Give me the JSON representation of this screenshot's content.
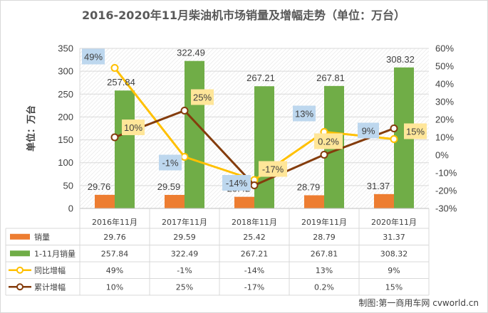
{
  "title": "2016-2020年11月柴油机市场销量及增幅走势（单位：万台）",
  "watermark": "制图:第一商用车网 cvworld.cn",
  "chart_data": {
    "type": "bar",
    "title": "2016-2020年11月柴油机市场销量及增幅走势（单位：万台）",
    "ylabel": "单位：万台",
    "categories": [
      "2016年11月",
      "2017年11月",
      "2018年11月",
      "2019年11月",
      "2020年11月"
    ],
    "ylim": [
      0,
      350
    ],
    "y_ticks": [
      "0",
      "50",
      "100",
      "150",
      "200",
      "250",
      "300",
      "350"
    ],
    "y2lim": [
      -30,
      60
    ],
    "y2_ticks": [
      "-30%",
      "-20%",
      "-10%",
      "0%",
      "10%",
      "20%",
      "30%",
      "40%",
      "50%",
      "60%"
    ],
    "grid": true,
    "legend": "bottom-table",
    "series": [
      {
        "name": "销量",
        "type": "bar",
        "axis": "left",
        "color": "#ED7D31",
        "values": [
          29.76,
          29.59,
          25.42,
          28.79,
          31.37
        ],
        "labels": [
          "29.76",
          "29.59",
          "25.42",
          "28.79",
          "31.37"
        ]
      },
      {
        "name": "1-11月销量",
        "type": "bar",
        "axis": "left",
        "color": "#70AD47",
        "values": [
          257.84,
          322.49,
          267.21,
          267.81,
          308.32
        ],
        "labels": [
          "257.84",
          "322.49",
          "267.21",
          "267.81",
          "308.32"
        ]
      },
      {
        "name": "同比增幅",
        "type": "line",
        "axis": "right",
        "color": "#FFC000",
        "label_bg": "#BDD7EE",
        "values": [
          49,
          -1,
          -14,
          13,
          9
        ],
        "labels": [
          "49%",
          "-1%",
          "-14%",
          "13%",
          "9%"
        ]
      },
      {
        "name": "累计增幅",
        "type": "line",
        "axis": "right",
        "color": "#843C0C",
        "label_bg": "#FFE699",
        "values": [
          10,
          25,
          -17,
          0.2,
          15
        ],
        "labels": [
          "10%",
          "25%",
          "-17%",
          "0.2%",
          "15%"
        ]
      }
    ]
  }
}
